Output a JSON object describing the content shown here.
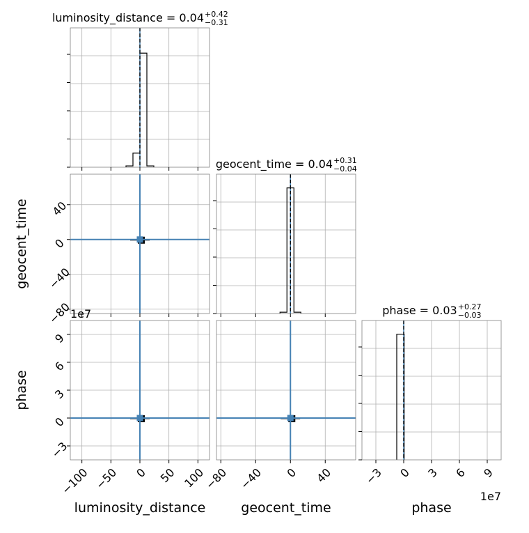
{
  "chart_data": {
    "type": "corner",
    "parameters": [
      "luminosity_distance",
      "geocent_time",
      "phase"
    ],
    "titles": {
      "luminosity_distance": {
        "prefix": "luminosity_distance = 0.04",
        "plus": "+0.42",
        "minus": "−0.31"
      },
      "geocent_time": {
        "prefix": "geocent_time = 0.04",
        "plus": "+0.31",
        "minus": "−0.04"
      },
      "phase": {
        "prefix": "phase = 0.03",
        "plus": "+0.27",
        "minus": "−0.03"
      }
    },
    "axis_labels": {
      "x": [
        "luminosity_distance",
        "geocent_time",
        "phase"
      ],
      "y": [
        "geocent_time",
        "phase"
      ]
    },
    "ranges": {
      "luminosity_distance": [
        -120,
        120
      ],
      "geocent_time": [
        -85,
        75
      ],
      "phase": [
        -4.5,
        10.5
      ]
    },
    "ticks": {
      "luminosity_distance": [
        -100,
        -50,
        0,
        50,
        100
      ],
      "geocent_time": [
        -80,
        -40,
        0,
        40
      ],
      "phase": [
        -3,
        0,
        3,
        6,
        9
      ]
    },
    "tick_labels": {
      "luminosity_distance": [
        "−100",
        "−50",
        "0",
        "50",
        "100"
      ],
      "geocent_time": [
        "−80",
        "−40",
        "0",
        "40"
      ],
      "phase": [
        "−3",
        "0",
        "3",
        "6",
        "9"
      ]
    },
    "offset_labels": {
      "phase_y": "1e7",
      "phase_x": "1e7"
    },
    "truths": {
      "luminosity_distance": 0,
      "geocent_time": 0,
      "phase": 0
    },
    "truth_color": "#4682b4",
    "hist_color": "#000000",
    "histograms": {
      "luminosity_distance": {
        "edges": [
          -24,
          -12,
          0,
          12,
          24
        ],
        "counts": [
          0.01,
          0.11,
          0.89,
          0.01
        ]
      },
      "geocent_time": {
        "edges": [
          -12,
          -4,
          4,
          12
        ],
        "counts": [
          0.01,
          0.98,
          0.01
        ]
      },
      "phase": {
        "edges": [
          -0.75,
          -0.05,
          0.05
        ],
        "counts": [
          0.98,
          0.98
        ]
      }
    },
    "grid": true,
    "legend": "none"
  }
}
